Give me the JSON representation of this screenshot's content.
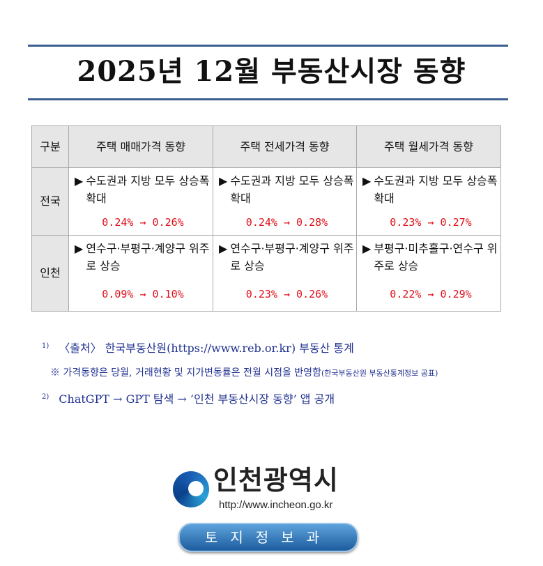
{
  "title": "2025년 12월 부동산시장 동향",
  "table": {
    "headers": [
      "구분",
      "주택 매매가격 동향",
      "주택 전세가격 동향",
      "주택 월세가격 동향"
    ],
    "rows": [
      {
        "region": "전국",
        "cells": [
          {
            "bullet": "▶",
            "text": "수도권과 지방 모두 상승폭 확대",
            "change": "0.24% → 0.26%"
          },
          {
            "bullet": "▶",
            "text": "수도권과 지방 모두 상승폭 확대",
            "change": "0.24% → 0.28%"
          },
          {
            "bullet": "▶",
            "text": "수도권과 지방 모두 상승폭 확대",
            "change": "0.23% → 0.27%"
          }
        ]
      },
      {
        "region": "인천",
        "cells": [
          {
            "bullet": "▶",
            "text": "연수구·부평구·계양구 위주로 상승",
            "change": "0.09% → 0.10%"
          },
          {
            "bullet": "▶",
            "text": "연수구·부평구·계양구 위주로 상승",
            "change": "0.23% → 0.26%"
          },
          {
            "bullet": "▶",
            "text": "부평구·미추홀구·연수구 위주로 상승",
            "change": "0.22% → 0.29%"
          }
        ]
      }
    ]
  },
  "notes": {
    "n1_mark": "1)",
    "n1": "〈출처〉 한국부동산원(https://www.reb.or.kr) 부동산 통계",
    "n1_sub": "※ 가격동향은 당월, 거래현황 및 지가변동률은 전월 시점을 반영함",
    "n1_sub_small": "(한국부동산원 부동산통계정보 공표)",
    "n2_mark": "2)",
    "n2": "ChatGPT → GPT 탐색 → ‘인천 부동산시장 동향’ 앱 공개"
  },
  "logo": {
    "city": "인천광역시",
    "url": "http://www.incheon.go.kr",
    "dept": "토지정보과"
  },
  "colors": {
    "rule": "#3a5f8f",
    "change": "#e0101a",
    "note": "#1f2f8f"
  }
}
